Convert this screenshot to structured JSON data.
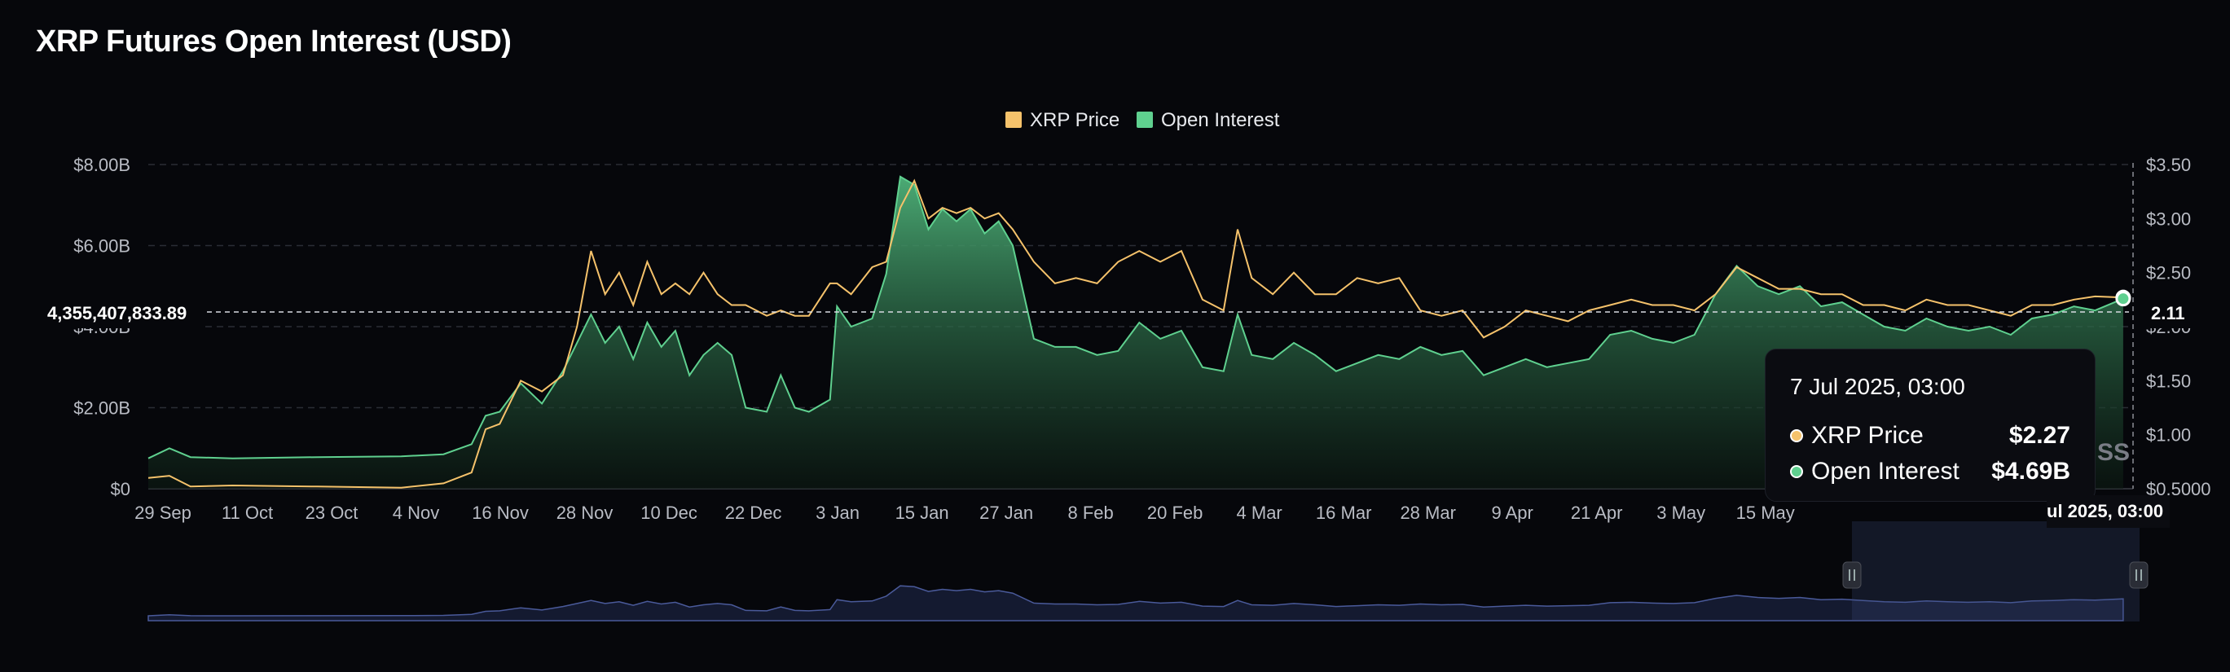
{
  "title": "XRP Futures Open Interest (USD)",
  "colors": {
    "background": "#06070b",
    "price_line": "#f5c26b",
    "oi_line": "#5fd08f",
    "oi_fill_top": "#3f9a66",
    "navigator_line": "#4a5a9a",
    "navigator_fill": "#151c33"
  },
  "crosshair": {
    "left_label": "4,355,407,833.89",
    "right_label": "2.11"
  },
  "watermark_fragment": "SS",
  "tooltip": {
    "date": "7 Jul 2025, 03:00",
    "rows": [
      {
        "label": "XRP Price",
        "value": "$2.27",
        "color": "#f5c26b"
      },
      {
        "label": "Open Interest",
        "value": "$4.69B",
        "color": "#5fd08f"
      }
    ]
  },
  "x_badge": "ul 2025, 03:00",
  "chart_data": {
    "type": "area",
    "title": "XRP Futures Open Interest (USD)",
    "legend": [
      "XRP Price",
      "Open Interest"
    ],
    "legend_position": "top-center",
    "grid": true,
    "x_tick_labels": [
      "29 Sep",
      "11 Oct",
      "23 Oct",
      "4 Nov",
      "16 Nov",
      "28 Nov",
      "10 Dec",
      "22 Dec",
      "3 Jan",
      "15 Jan",
      "27 Jan",
      "8 Feb",
      "20 Feb",
      "4 Mar",
      "16 Mar",
      "28 Mar",
      "9 Apr",
      "21 Apr",
      "3 May",
      "15 May"
    ],
    "y_left": {
      "tick_labels": [
        "$0",
        "$2.00B",
        "$4.00B",
        "$6.00B",
        "$8.00B"
      ],
      "ticks": [
        0,
        2,
        4,
        6,
        8
      ],
      "range": [
        0,
        8
      ],
      "unit": "billions USD"
    },
    "y_right": {
      "tick_labels": [
        "$0.5000",
        "$1.00",
        "$1.50",
        "$2.00",
        "$2.50",
        "$3.00",
        "$3.50"
      ],
      "ticks": [
        0.5,
        1,
        1.5,
        2,
        2.5,
        3,
        3.5
      ],
      "range": [
        0.5,
        3.5
      ],
      "unit": "USD"
    },
    "x_start": "2024-09-29",
    "series": [
      {
        "name": "Open Interest",
        "axis": "left",
        "points": [
          [
            "2024-09-29",
            0.75
          ],
          [
            "2024-10-02",
            1.0
          ],
          [
            "2024-10-05",
            0.78
          ],
          [
            "2024-10-11",
            0.75
          ],
          [
            "2024-10-23",
            0.78
          ],
          [
            "2024-11-04",
            0.8
          ],
          [
            "2024-11-10",
            0.85
          ],
          [
            "2024-11-14",
            1.1
          ],
          [
            "2024-11-16",
            1.8
          ],
          [
            "2024-11-18",
            1.9
          ],
          [
            "2024-11-21",
            2.6
          ],
          [
            "2024-11-24",
            2.1
          ],
          [
            "2024-11-27",
            2.9
          ],
          [
            "2024-11-29",
            3.6
          ],
          [
            "2024-12-01",
            4.3
          ],
          [
            "2024-12-03",
            3.6
          ],
          [
            "2024-12-05",
            4.0
          ],
          [
            "2024-12-07",
            3.2
          ],
          [
            "2024-12-09",
            4.1
          ],
          [
            "2024-12-11",
            3.5
          ],
          [
            "2024-12-13",
            3.9
          ],
          [
            "2024-12-15",
            2.8
          ],
          [
            "2024-12-17",
            3.3
          ],
          [
            "2024-12-19",
            3.6
          ],
          [
            "2024-12-21",
            3.3
          ],
          [
            "2024-12-23",
            2.0
          ],
          [
            "2024-12-26",
            1.9
          ],
          [
            "2024-12-28",
            2.8
          ],
          [
            "2024-12-30",
            2.0
          ],
          [
            "2025-01-01",
            1.9
          ],
          [
            "2025-01-04",
            2.2
          ],
          [
            "2025-01-05",
            4.5
          ],
          [
            "2025-01-07",
            4.0
          ],
          [
            "2025-01-10",
            4.2
          ],
          [
            "2025-01-12",
            5.3
          ],
          [
            "2025-01-14",
            7.7
          ],
          [
            "2025-01-16",
            7.5
          ],
          [
            "2025-01-18",
            6.4
          ],
          [
            "2025-01-20",
            6.9
          ],
          [
            "2025-01-22",
            6.6
          ],
          [
            "2025-01-24",
            6.9
          ],
          [
            "2025-01-26",
            6.3
          ],
          [
            "2025-01-28",
            6.6
          ],
          [
            "2025-01-30",
            6.0
          ],
          [
            "2025-02-02",
            3.7
          ],
          [
            "2025-02-05",
            3.5
          ],
          [
            "2025-02-08",
            3.5
          ],
          [
            "2025-02-11",
            3.3
          ],
          [
            "2025-02-14",
            3.4
          ],
          [
            "2025-02-17",
            4.1
          ],
          [
            "2025-02-20",
            3.7
          ],
          [
            "2025-02-23",
            3.9
          ],
          [
            "2025-02-26",
            3.0
          ],
          [
            "2025-03-01",
            2.9
          ],
          [
            "2025-03-03",
            4.3
          ],
          [
            "2025-03-05",
            3.3
          ],
          [
            "2025-03-08",
            3.2
          ],
          [
            "2025-03-11",
            3.6
          ],
          [
            "2025-03-14",
            3.3
          ],
          [
            "2025-03-17",
            2.9
          ],
          [
            "2025-03-20",
            3.1
          ],
          [
            "2025-03-23",
            3.3
          ],
          [
            "2025-03-26",
            3.2
          ],
          [
            "2025-03-29",
            3.5
          ],
          [
            "2025-04-01",
            3.3
          ],
          [
            "2025-04-04",
            3.4
          ],
          [
            "2025-04-07",
            2.8
          ],
          [
            "2025-04-10",
            3.0
          ],
          [
            "2025-04-13",
            3.2
          ],
          [
            "2025-04-16",
            3.0
          ],
          [
            "2025-04-19",
            3.1
          ],
          [
            "2025-04-22",
            3.2
          ],
          [
            "2025-04-25",
            3.8
          ],
          [
            "2025-04-28",
            3.9
          ],
          [
            "2025-05-01",
            3.7
          ],
          [
            "2025-05-04",
            3.6
          ],
          [
            "2025-05-07",
            3.8
          ],
          [
            "2025-05-10",
            4.8
          ],
          [
            "2025-05-13",
            5.5
          ],
          [
            "2025-05-16",
            5.0
          ],
          [
            "2025-05-19",
            4.8
          ],
          [
            "2025-05-22",
            5.0
          ],
          [
            "2025-05-25",
            4.5
          ],
          [
            "2025-05-28",
            4.6
          ],
          [
            "2025-05-31",
            4.3
          ],
          [
            "2025-06-03",
            4.0
          ],
          [
            "2025-06-06",
            3.9
          ],
          [
            "2025-06-09",
            4.2
          ],
          [
            "2025-06-12",
            4.0
          ],
          [
            "2025-06-15",
            3.9
          ],
          [
            "2025-06-18",
            4.0
          ],
          [
            "2025-06-21",
            3.8
          ],
          [
            "2025-06-24",
            4.2
          ],
          [
            "2025-06-27",
            4.3
          ],
          [
            "2025-06-30",
            4.5
          ],
          [
            "2025-07-03",
            4.4
          ],
          [
            "2025-07-07",
            4.69
          ]
        ]
      },
      {
        "name": "XRP Price",
        "axis": "right",
        "points": [
          [
            "2024-09-29",
            0.6
          ],
          [
            "2024-10-02",
            0.62
          ],
          [
            "2024-10-05",
            0.52
          ],
          [
            "2024-10-11",
            0.53
          ],
          [
            "2024-10-23",
            0.52
          ],
          [
            "2024-11-04",
            0.51
          ],
          [
            "2024-11-10",
            0.55
          ],
          [
            "2024-11-14",
            0.65
          ],
          [
            "2024-11-16",
            1.05
          ],
          [
            "2024-11-18",
            1.1
          ],
          [
            "2024-11-21",
            1.5
          ],
          [
            "2024-11-24",
            1.4
          ],
          [
            "2024-11-27",
            1.55
          ],
          [
            "2024-11-29",
            2.0
          ],
          [
            "2024-12-01",
            2.7
          ],
          [
            "2024-12-03",
            2.3
          ],
          [
            "2024-12-05",
            2.5
          ],
          [
            "2024-12-07",
            2.2
          ],
          [
            "2024-12-09",
            2.6
          ],
          [
            "2024-12-11",
            2.3
          ],
          [
            "2024-12-13",
            2.4
          ],
          [
            "2024-12-15",
            2.3
          ],
          [
            "2024-12-17",
            2.5
          ],
          [
            "2024-12-19",
            2.3
          ],
          [
            "2024-12-21",
            2.2
          ],
          [
            "2024-12-23",
            2.2
          ],
          [
            "2024-12-26",
            2.1
          ],
          [
            "2024-12-28",
            2.15
          ],
          [
            "2024-12-30",
            2.1
          ],
          [
            "2025-01-01",
            2.1
          ],
          [
            "2025-01-04",
            2.4
          ],
          [
            "2025-01-05",
            2.4
          ],
          [
            "2025-01-07",
            2.3
          ],
          [
            "2025-01-10",
            2.55
          ],
          [
            "2025-01-12",
            2.6
          ],
          [
            "2025-01-14",
            3.1
          ],
          [
            "2025-01-16",
            3.35
          ],
          [
            "2025-01-18",
            3.0
          ],
          [
            "2025-01-20",
            3.1
          ],
          [
            "2025-01-22",
            3.05
          ],
          [
            "2025-01-24",
            3.1
          ],
          [
            "2025-01-26",
            3.0
          ],
          [
            "2025-01-28",
            3.05
          ],
          [
            "2025-01-30",
            2.9
          ],
          [
            "2025-02-02",
            2.6
          ],
          [
            "2025-02-05",
            2.4
          ],
          [
            "2025-02-08",
            2.45
          ],
          [
            "2025-02-11",
            2.4
          ],
          [
            "2025-02-14",
            2.6
          ],
          [
            "2025-02-17",
            2.7
          ],
          [
            "2025-02-20",
            2.6
          ],
          [
            "2025-02-23",
            2.7
          ],
          [
            "2025-02-26",
            2.25
          ],
          [
            "2025-03-01",
            2.15
          ],
          [
            "2025-03-03",
            2.9
          ],
          [
            "2025-03-05",
            2.45
          ],
          [
            "2025-03-08",
            2.3
          ],
          [
            "2025-03-11",
            2.5
          ],
          [
            "2025-03-14",
            2.3
          ],
          [
            "2025-03-17",
            2.3
          ],
          [
            "2025-03-20",
            2.45
          ],
          [
            "2025-03-23",
            2.4
          ],
          [
            "2025-03-26",
            2.45
          ],
          [
            "2025-03-29",
            2.15
          ],
          [
            "2025-04-01",
            2.1
          ],
          [
            "2025-04-04",
            2.15
          ],
          [
            "2025-04-07",
            1.9
          ],
          [
            "2025-04-10",
            2.0
          ],
          [
            "2025-04-13",
            2.15
          ],
          [
            "2025-04-16",
            2.1
          ],
          [
            "2025-04-19",
            2.05
          ],
          [
            "2025-04-22",
            2.15
          ],
          [
            "2025-04-25",
            2.2
          ],
          [
            "2025-04-28",
            2.25
          ],
          [
            "2025-05-01",
            2.2
          ],
          [
            "2025-05-04",
            2.2
          ],
          [
            "2025-05-07",
            2.15
          ],
          [
            "2025-05-10",
            2.3
          ],
          [
            "2025-05-13",
            2.55
          ],
          [
            "2025-05-16",
            2.45
          ],
          [
            "2025-05-19",
            2.35
          ],
          [
            "2025-05-22",
            2.35
          ],
          [
            "2025-05-25",
            2.3
          ],
          [
            "2025-05-28",
            2.3
          ],
          [
            "2025-05-31",
            2.2
          ],
          [
            "2025-06-03",
            2.2
          ],
          [
            "2025-06-06",
            2.15
          ],
          [
            "2025-06-09",
            2.25
          ],
          [
            "2025-06-12",
            2.2
          ],
          [
            "2025-06-15",
            2.2
          ],
          [
            "2025-06-18",
            2.15
          ],
          [
            "2025-06-21",
            2.1
          ],
          [
            "2025-06-24",
            2.2
          ],
          [
            "2025-06-27",
            2.2
          ],
          [
            "2025-06-30",
            2.25
          ],
          [
            "2025-07-03",
            2.28
          ],
          [
            "2025-07-07",
            2.27
          ]
        ]
      }
    ],
    "selected_point": {
      "date": "7 Jul 2025, 03:00",
      "XRP Price": "$2.27",
      "Open Interest": "$4.69B"
    }
  }
}
